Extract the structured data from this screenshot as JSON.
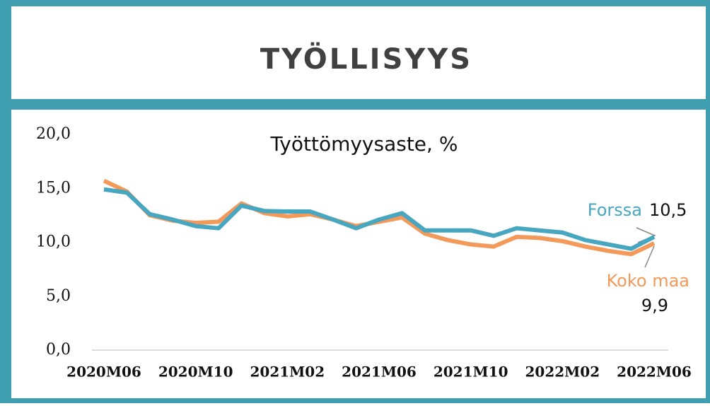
{
  "header": {
    "title": "TYÖLLISYYS"
  },
  "chart_data": {
    "type": "line",
    "title": "Työttömyysaste, %",
    "categories": [
      "2020M06",
      null,
      null,
      null,
      "2020M10",
      null,
      null,
      null,
      "2021M02",
      null,
      null,
      null,
      "2021M06",
      null,
      null,
      null,
      "2021M10",
      null,
      null,
      null,
      "2022M02",
      null,
      null,
      null,
      "2022M06"
    ],
    "series": [
      {
        "name": "Forssa",
        "color": "#47a6c0",
        "end_label": "10,5",
        "values": [
          14.9,
          14.6,
          12.6,
          12.1,
          11.5,
          11.3,
          13.4,
          12.9,
          12.85,
          12.85,
          12.1,
          11.3,
          12.1,
          12.7,
          11.1,
          11.1,
          11.1,
          10.6,
          11.3,
          11.1,
          10.9,
          10.2,
          9.8,
          9.4,
          10.5
        ]
      },
      {
        "name": "Koko maa",
        "color": "#f3995a",
        "end_label": "9,9",
        "values": [
          15.7,
          14.7,
          12.5,
          12.0,
          11.8,
          11.9,
          13.6,
          12.7,
          12.4,
          12.6,
          12.1,
          11.5,
          11.9,
          12.3,
          10.8,
          10.2,
          9.8,
          9.6,
          10.5,
          10.4,
          10.1,
          9.6,
          9.2,
          8.9,
          9.9
        ]
      }
    ],
    "ylim": [
      0,
      20
    ],
    "yticks": [
      {
        "value": 0,
        "label": "0,0"
      },
      {
        "value": 5,
        "label": "5,0"
      },
      {
        "value": 10,
        "label": "10,0"
      },
      {
        "value": 15,
        "label": "15,0"
      },
      {
        "value": 20,
        "label": "20,0"
      }
    ],
    "grid": false
  }
}
